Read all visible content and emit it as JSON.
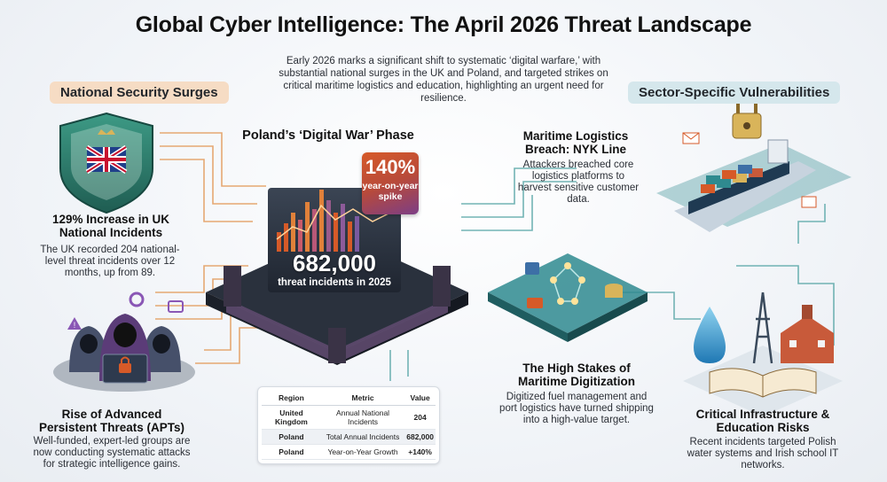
{
  "header": {
    "title": "Global Cyber Intelligence: The April 2026 Threat Landscape",
    "intro": "Early 2026 marks a significant shift to systematic ‘digital warfare,’ with substantial national surges in the UK and Poland, and targeted strikes on critical maritime logistics and education, highlighting an urgent need for resilience."
  },
  "sections": {
    "left_label": "National Security Surges",
    "right_label": "Sector-Specific Vulnerabilities"
  },
  "uk": {
    "heading": "129% Increase in UK National Incidents",
    "body": "The UK recorded 204 national-level threat incidents over 12 months, up from 89."
  },
  "apt": {
    "heading": "Rise of Advanced Persistent Threats (APTs)",
    "body": "Well-funded, expert-led groups are now conducting systematic attacks for strategic intelligence gains."
  },
  "poland": {
    "heading": "Poland’s ‘Digital War’ Phase",
    "big_number": "682,000",
    "big_caption": "threat incidents in 2025",
    "badge_pct": "140%",
    "badge_caption": "year-on-year spike"
  },
  "maritime": {
    "heading": "Maritime Logistics Breach: NYK Line",
    "body": "Attackers breached core logistics platforms to harvest sensitive customer data."
  },
  "digitization": {
    "heading": "The High Stakes of Maritime Digitization",
    "body": "Digitized fuel management and port logistics have turned shipping into a high-value target."
  },
  "infrastructure": {
    "heading": "Critical Infrastructure & Education Risks",
    "body": "Recent incidents targeted Polish water systems and Irish school IT networks."
  },
  "table": {
    "headers": [
      "Region",
      "Metric",
      "Value"
    ],
    "rows": [
      [
        "United Kingdom",
        "Annual National Incidents",
        "204"
      ],
      [
        "Poland",
        "Total Annual Incidents",
        "682,000"
      ],
      [
        "Poland",
        "Year-on-Year Growth",
        "+140%"
      ]
    ]
  },
  "colors": {
    "accent_orange": "#d65a28",
    "accent_teal": "#2f8a8f",
    "shield_green": "#2f7f6e",
    "circuit_orange": "#e39b5b"
  }
}
